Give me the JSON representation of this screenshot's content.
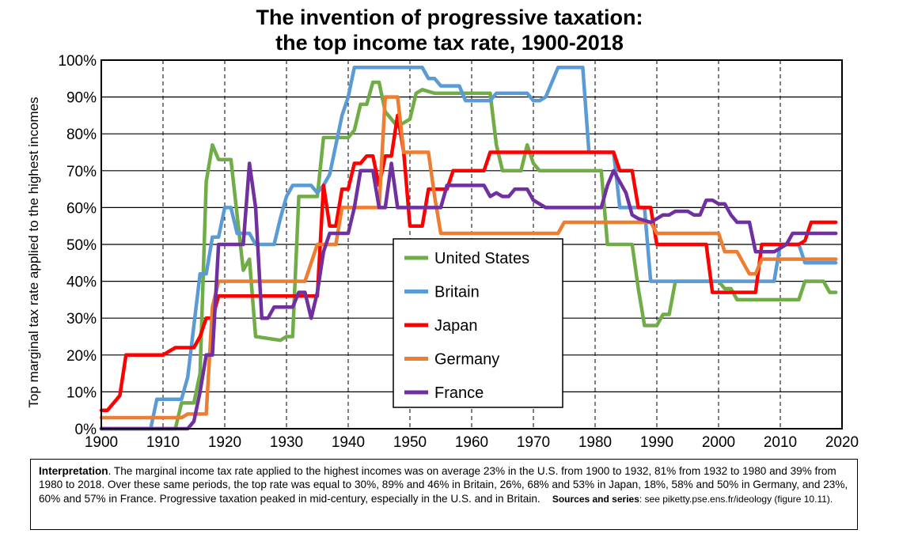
{
  "chart_data": {
    "type": "line",
    "title_line1": "The invention of progressive taxation:",
    "title_line2": "the top income tax rate, 1900-2018",
    "ylabel": "Top marginal tax rate applied to the highest incomes",
    "xlim": [
      1900,
      2020
    ],
    "ylim": [
      0,
      100
    ],
    "x_ticks": [
      "1900",
      "1910",
      "1920",
      "1930",
      "1940",
      "1950",
      "1960",
      "1970",
      "1980",
      "1990",
      "2000",
      "2010",
      "2020"
    ],
    "y_ticks": [
      "0%",
      "10%",
      "20%",
      "30%",
      "40%",
      "50%",
      "60%",
      "70%",
      "80%",
      "90%",
      "100%"
    ],
    "grid": true,
    "legend_position": "center",
    "series": [
      {
        "name": "United States",
        "color": "#70ad47",
        "points": [
          [
            1900,
            0
          ],
          [
            1912,
            0
          ],
          [
            1913,
            7
          ],
          [
            1915,
            7
          ],
          [
            1916,
            15
          ],
          [
            1917,
            67
          ],
          [
            1918,
            77
          ],
          [
            1919,
            73
          ],
          [
            1921,
            73
          ],
          [
            1922,
            58
          ],
          [
            1923,
            43
          ],
          [
            1924,
            46
          ],
          [
            1925,
            25
          ],
          [
            1929,
            24
          ],
          [
            1930,
            25
          ],
          [
            1931,
            25
          ],
          [
            1932,
            63
          ],
          [
            1935,
            63
          ],
          [
            1936,
            79
          ],
          [
            1940,
            79
          ],
          [
            1941,
            81
          ],
          [
            1942,
            88
          ],
          [
            1943,
            88
          ],
          [
            1944,
            94
          ],
          [
            1945,
            94
          ],
          [
            1946,
            86
          ],
          [
            1948,
            82
          ],
          [
            1950,
            84
          ],
          [
            1951,
            91
          ],
          [
            1952,
            92
          ],
          [
            1954,
            91
          ],
          [
            1963,
            91
          ],
          [
            1964,
            77
          ],
          [
            1965,
            70
          ],
          [
            1968,
            70
          ],
          [
            1969,
            77
          ],
          [
            1970,
            72
          ],
          [
            1971,
            70
          ],
          [
            1981,
            70
          ],
          [
            1982,
            50
          ],
          [
            1986,
            50
          ],
          [
            1987,
            38
          ],
          [
            1988,
            28
          ],
          [
            1990,
            28
          ],
          [
            1991,
            31
          ],
          [
            1992,
            31
          ],
          [
            1993,
            40
          ],
          [
            2000,
            40
          ],
          [
            2001,
            38
          ],
          [
            2002,
            38
          ],
          [
            2003,
            35
          ],
          [
            2013,
            35
          ],
          [
            2014,
            40
          ],
          [
            2017,
            40
          ],
          [
            2018,
            37
          ],
          [
            2019,
            37
          ]
        ]
      },
      {
        "name": "Britain",
        "color": "#5b9bd5",
        "points": [
          [
            1900,
            0
          ],
          [
            1908,
            0
          ],
          [
            1909,
            8
          ],
          [
            1913,
            8
          ],
          [
            1914,
            14
          ],
          [
            1915,
            28
          ],
          [
            1916,
            42
          ],
          [
            1917,
            42
          ],
          [
            1918,
            52
          ],
          [
            1919,
            52
          ],
          [
            1920,
            60
          ],
          [
            1921,
            60
          ],
          [
            1922,
            53
          ],
          [
            1924,
            53
          ],
          [
            1925,
            50
          ],
          [
            1928,
            50
          ],
          [
            1929,
            57
          ],
          [
            1930,
            63
          ],
          [
            1931,
            66
          ],
          [
            1934,
            66
          ],
          [
            1935,
            64
          ],
          [
            1936,
            66
          ],
          [
            1937,
            69
          ],
          [
            1938,
            77
          ],
          [
            1939,
            85
          ],
          [
            1940,
            90
          ],
          [
            1941,
            98
          ],
          [
            1952,
            98
          ],
          [
            1953,
            95
          ],
          [
            1954,
            95
          ],
          [
            1955,
            93
          ],
          [
            1958,
            93
          ],
          [
            1959,
            89
          ],
          [
            1963,
            89
          ],
          [
            1964,
            91
          ],
          [
            1969,
            91
          ],
          [
            1970,
            89
          ],
          [
            1971,
            89
          ],
          [
            1972,
            90
          ],
          [
            1974,
            98
          ],
          [
            1978,
            98
          ],
          [
            1979,
            75
          ],
          [
            1983,
            75
          ],
          [
            1984,
            60
          ],
          [
            1988,
            60
          ],
          [
            1989,
            40
          ],
          [
            2009,
            40
          ],
          [
            2010,
            50
          ],
          [
            2013,
            50
          ],
          [
            2014,
            45
          ],
          [
            2019,
            45
          ]
        ]
      },
      {
        "name": "Japan",
        "color": "#ff0000",
        "points": [
          [
            1900,
            5
          ],
          [
            1901,
            5
          ],
          [
            1903,
            9
          ],
          [
            1904,
            20
          ],
          [
            1910,
            20
          ],
          [
            1911,
            21
          ],
          [
            1912,
            22
          ],
          [
            1915,
            22
          ],
          [
            1916,
            25
          ],
          [
            1917,
            30
          ],
          [
            1918,
            30
          ],
          [
            1919,
            36
          ],
          [
            1935,
            36
          ],
          [
            1936,
            66
          ],
          [
            1937,
            55
          ],
          [
            1938,
            55
          ],
          [
            1939,
            65
          ],
          [
            1940,
            65
          ],
          [
            1941,
            72
          ],
          [
            1942,
            72
          ],
          [
            1943,
            74
          ],
          [
            1944,
            74
          ],
          [
            1945,
            66
          ],
          [
            1946,
            74
          ],
          [
            1947,
            74
          ],
          [
            1948,
            85
          ],
          [
            1949,
            75
          ],
          [
            1950,
            55
          ],
          [
            1952,
            55
          ],
          [
            1953,
            65
          ],
          [
            1956,
            65
          ],
          [
            1957,
            70
          ],
          [
            1962,
            70
          ],
          [
            1963,
            75
          ],
          [
            1983,
            75
          ],
          [
            1984,
            70
          ],
          [
            1986,
            70
          ],
          [
            1987,
            60
          ],
          [
            1989,
            60
          ],
          [
            1990,
            50
          ],
          [
            1998,
            50
          ],
          [
            1999,
            37
          ],
          [
            2006,
            37
          ],
          [
            2007,
            50
          ],
          [
            2013,
            50
          ],
          [
            2014,
            51
          ],
          [
            2015,
            56
          ],
          [
            2019,
            56
          ]
        ]
      },
      {
        "name": "Germany",
        "color": "#ed7d31",
        "points": [
          [
            1900,
            3
          ],
          [
            1913,
            3
          ],
          [
            1914,
            4
          ],
          [
            1917,
            4
          ],
          [
            1918,
            33
          ],
          [
            1919,
            40
          ],
          [
            1933,
            40
          ],
          [
            1934,
            45
          ],
          [
            1935,
            50
          ],
          [
            1938,
            50
          ],
          [
            1939,
            60
          ],
          [
            1945,
            60
          ],
          [
            1946,
            90
          ],
          [
            1948,
            90
          ],
          [
            1949,
            75
          ],
          [
            1953,
            75
          ],
          [
            1954,
            63
          ],
          [
            1955,
            53
          ],
          [
            1974,
            53
          ],
          [
            1975,
            56
          ],
          [
            1989,
            56
          ],
          [
            1990,
            53
          ],
          [
            2000,
            53
          ],
          [
            2001,
            48
          ],
          [
            2003,
            48
          ],
          [
            2004,
            45
          ],
          [
            2005,
            42
          ],
          [
            2006,
            42
          ],
          [
            2007,
            46
          ],
          [
            2019,
            46
          ]
        ]
      },
      {
        "name": "France",
        "color": "#7030a0",
        "points": [
          [
            1900,
            0
          ],
          [
            1914,
            0
          ],
          [
            1915,
            2
          ],
          [
            1916,
            10
          ],
          [
            1917,
            20
          ],
          [
            1918,
            20
          ],
          [
            1919,
            50
          ],
          [
            1923,
            50
          ],
          [
            1924,
            72
          ],
          [
            1925,
            60
          ],
          [
            1926,
            30
          ],
          [
            1927,
            30
          ],
          [
            1928,
            33
          ],
          [
            1931,
            33
          ],
          [
            1932,
            37
          ],
          [
            1933,
            37
          ],
          [
            1934,
            30
          ],
          [
            1935,
            37
          ],
          [
            1936,
            48
          ],
          [
            1937,
            53
          ],
          [
            1940,
            53
          ],
          [
            1941,
            60
          ],
          [
            1942,
            70
          ],
          [
            1944,
            70
          ],
          [
            1945,
            60
          ],
          [
            1946,
            60
          ],
          [
            1947,
            72
          ],
          [
            1948,
            60
          ],
          [
            1955,
            60
          ],
          [
            1956,
            66
          ],
          [
            1962,
            66
          ],
          [
            1963,
            63
          ],
          [
            1964,
            64
          ],
          [
            1965,
            63
          ],
          [
            1966,
            63
          ],
          [
            1967,
            65
          ],
          [
            1969,
            65
          ],
          [
            1970,
            62
          ],
          [
            1972,
            60
          ],
          [
            1981,
            60
          ],
          [
            1982,
            66
          ],
          [
            1983,
            70
          ],
          [
            1984,
            67
          ],
          [
            1985,
            64
          ],
          [
            1986,
            58
          ],
          [
            1987,
            57
          ],
          [
            1989,
            56
          ],
          [
            1990,
            57
          ],
          [
            1991,
            58
          ],
          [
            1992,
            58
          ],
          [
            1993,
            59
          ],
          [
            1995,
            59
          ],
          [
            1996,
            58
          ],
          [
            1997,
            58
          ],
          [
            1998,
            62
          ],
          [
            1999,
            62
          ],
          [
            2000,
            61
          ],
          [
            2001,
            61
          ],
          [
            2002,
            58
          ],
          [
            2003,
            56
          ],
          [
            2005,
            56
          ],
          [
            2006,
            48
          ],
          [
            2009,
            48
          ],
          [
            2010,
            49
          ],
          [
            2011,
            50
          ],
          [
            2012,
            53
          ],
          [
            2019,
            53
          ]
        ]
      }
    ]
  },
  "interpretation": {
    "label": "Interpretation",
    "text": ". The marginal income tax rate applied to the highest incomes was on average 23% in the U.S. from 1900 to 1932, 81% from 1932 to 1980 and 39% from 1980 to 2018. Over these same periods, the top rate was equal to 30%, 89% and 46% in Britain, 26%, 68% and 53% in Japan, 18%, 58% and 50% in Germany, and 23%, 60% and 57% in France. Progressive taxation peaked in mid-century, especially in the U.S. and in Britain.",
    "sources_label": "Sources and series",
    "sources_text": ": see piketty.pse.ens.fr/ideology (figure 10.11)."
  }
}
